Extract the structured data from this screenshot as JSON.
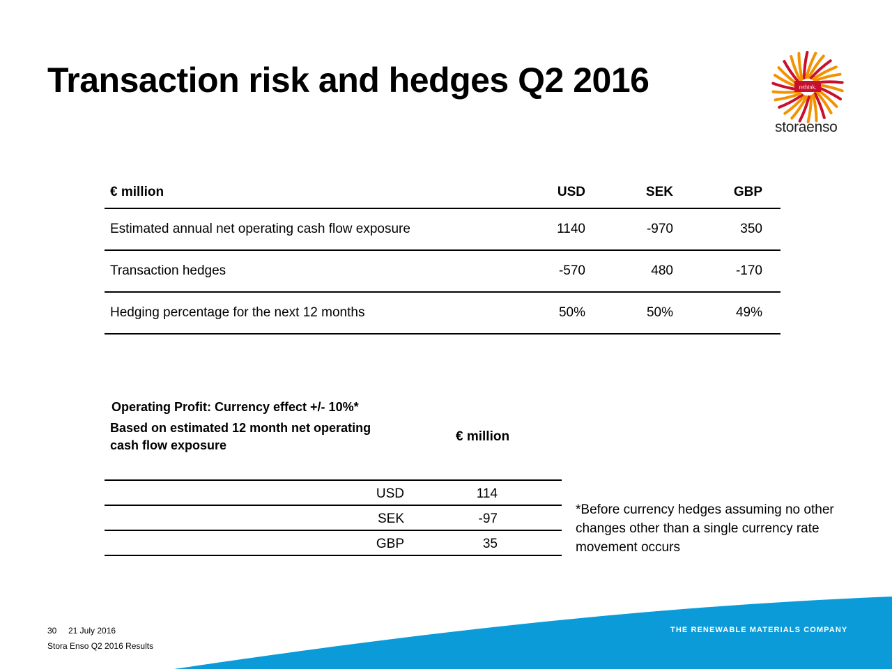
{
  "slide": {
    "title": "Transaction risk and hedges Q2 2016"
  },
  "logo": {
    "badge_text": "rethink.",
    "brand_word": "storaenso",
    "icon": "sunburst-logo-icon",
    "colors": {
      "orange": "#f39200",
      "red": "#c8102e",
      "dark": "#222222"
    }
  },
  "exposure_table": {
    "header": {
      "label": "€ million",
      "usd": "USD",
      "sek": "SEK",
      "gbp": "GBP"
    },
    "rows": [
      {
        "label": "Estimated annual net operating cash flow exposure",
        "usd": "1140",
        "sek": "-970",
        "gbp": "350"
      },
      {
        "label": "Transaction hedges",
        "usd": "-570",
        "sek": "480",
        "gbp": "-170"
      },
      {
        "label": "Hedging percentage for the next 12 months",
        "usd": "50%",
        "sek": "50%",
        "gbp": "49%"
      }
    ]
  },
  "sensitivity": {
    "heading": "Operating Profit: Currency effect +/- 10%*",
    "subheading": "Based on estimated 12 month net operating cash flow exposure",
    "unit": "€ million",
    "rows": [
      {
        "currency": "USD",
        "value": "114"
      },
      {
        "currency": "SEK",
        "value": "-97"
      },
      {
        "currency": "GBP",
        "value": "35"
      }
    ],
    "footnote": "*Before currency hedges assuming no other changes other than a single currency rate movement occurs"
  },
  "footer": {
    "page_number": "30",
    "date": "21 July 2016",
    "subtitle": "Stora Enso Q2 2016 Results",
    "tagline": "THE RENEWABLE MATERIALS COMPANY",
    "swoosh_color": "#0a9bd8"
  }
}
